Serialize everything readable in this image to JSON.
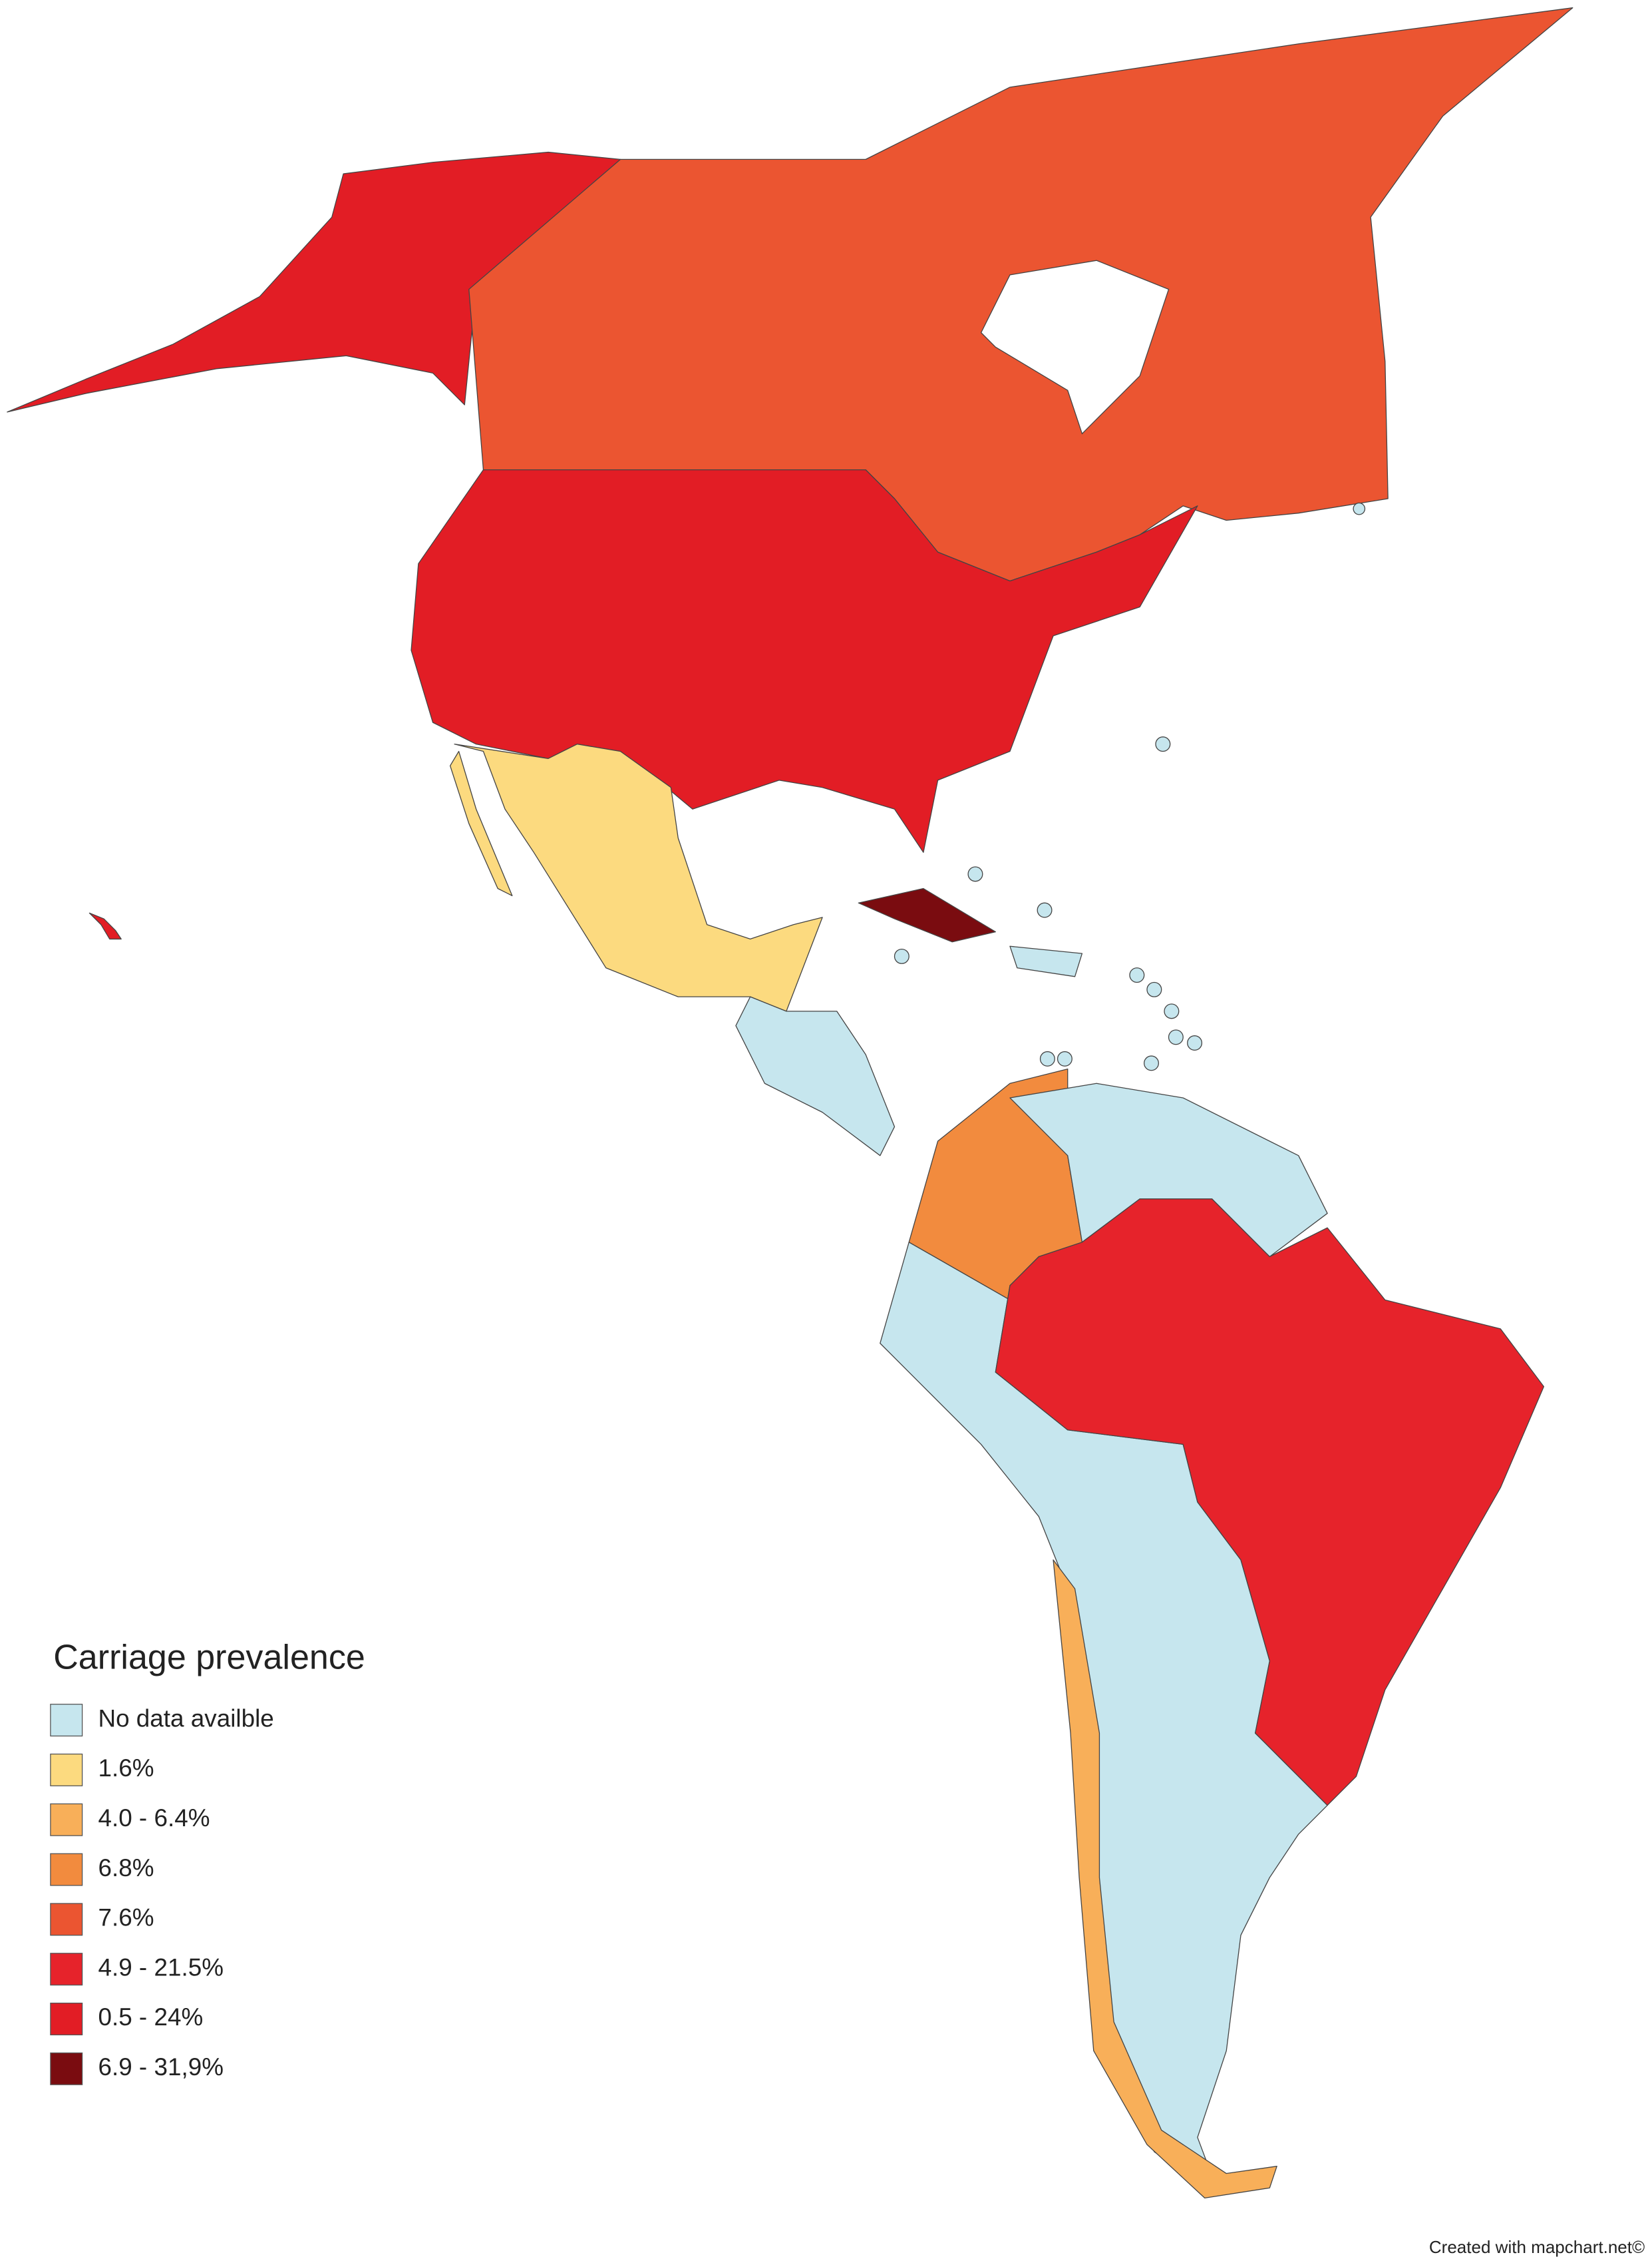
{
  "legend": {
    "title": "Carriage prevalence",
    "items": [
      {
        "label": "No data availble",
        "color": "#c6e6ee"
      },
      {
        "label": "1.6%",
        "color": "#fcda7f"
      },
      {
        "label": "4.0 - 6.4%",
        "color": "#f8af59"
      },
      {
        "label": "6.8%",
        "color": "#f28b3e"
      },
      {
        "label": "7.6%",
        "color": "#eb5531"
      },
      {
        "label": "4.9 - 21.5%",
        "color": "#e6232b"
      },
      {
        "label": "0.5 - 24%",
        "color": "#e21d25"
      },
      {
        "label": "6.9 - 31,9%",
        "color": "#7a0c10"
      }
    ]
  },
  "credit": "Created with mapchart.net©"
}
